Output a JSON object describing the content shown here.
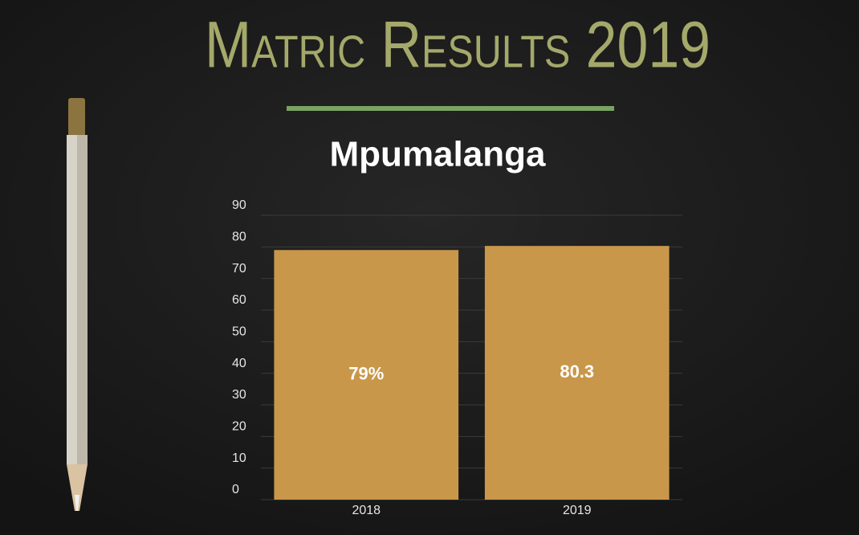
{
  "chart_data": {
    "type": "bar",
    "title": "Matric Results 2019",
    "subtitle": "Mpumalanga",
    "categories": [
      "2018",
      "2019"
    ],
    "values": [
      79,
      80.3
    ],
    "value_labels": [
      "79%",
      "80.3"
    ],
    "color": "#c9974a",
    "ylim": [
      0,
      90
    ],
    "yticks": [
      0,
      10,
      20,
      30,
      40,
      50,
      60,
      70,
      80,
      90
    ],
    "grid": true
  }
}
